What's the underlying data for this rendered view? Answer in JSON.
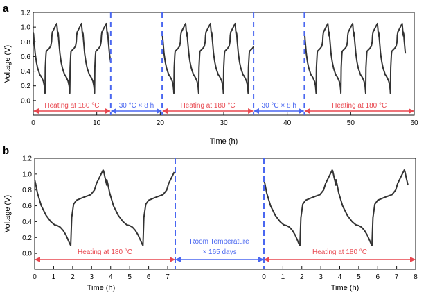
{
  "colors": {
    "curve": "#333333",
    "red": "#e8474f",
    "blue": "#4a67f0",
    "axis": "#111111"
  },
  "chart_data": [
    {
      "panel_label": "a",
      "type": "line",
      "xlabel": "Time (h)",
      "ylabel": "Voltage (V)",
      "xlim": [
        0,
        60
      ],
      "ylim": [
        -0.2,
        1.2
      ],
      "xticks": [
        0,
        10,
        20,
        30,
        40,
        50,
        60
      ],
      "yticks": [
        -0.2,
        0.0,
        0.2,
        0.4,
        0.6,
        0.8,
        1.0,
        1.2
      ],
      "ytick_labels": [
        "",
        "0.0",
        "0.2",
        "0.4",
        "0.6",
        "0.8",
        "1.0",
        "1.2"
      ],
      "dividers": [
        12.2,
        20.3,
        34.7,
        42.7
      ],
      "segments": [
        {
          "label": "Heating at 180 °C",
          "start": 0,
          "end": 12.2,
          "color": "red"
        },
        {
          "label": "30 °C × 8 h",
          "start": 12.2,
          "end": 20.3,
          "color": "blue"
        },
        {
          "label": "Heating at 180 °C",
          "start": 20.3,
          "end": 34.7,
          "color": "red"
        },
        {
          "label": "30 °C × 8 h",
          "start": 34.7,
          "end": 42.7,
          "color": "blue"
        },
        {
          "label": "Heating at 180 °C",
          "start": 42.7,
          "end": 60,
          "color": "red"
        }
      ],
      "cycles": [
        {
          "start": 0.0,
          "period": 3.9,
          "count": 3,
          "end": 12.2
        },
        {
          "start": 20.3,
          "period": 3.9,
          "count": 4,
          "end": 34.7
        },
        {
          "start": 42.7,
          "period": 3.9,
          "count": 4,
          "end": 58.6
        }
      ],
      "voltage_profile": {
        "t": [
          0,
          0.05,
          0.12,
          0.3,
          0.5,
          0.7,
          0.85,
          0.93,
          1.0,
          1.05,
          1.15,
          1.35,
          1.6,
          1.75,
          1.82,
          1.85,
          1.9,
          2.0,
          2.05,
          2.5,
          2.75,
          2.88,
          2.93,
          3.0,
          3.7,
          3.72,
          3.78,
          3.85,
          3.9
        ],
        "v": [
          0.93,
          0.9,
          0.82,
          0.64,
          0.52,
          0.44,
          0.4,
          0.38,
          0.36,
          0.35,
          0.34,
          0.31,
          0.26,
          0.2,
          0.14,
          0.1,
          0.45,
          0.62,
          0.67,
          0.71,
          0.74,
          0.8,
          0.88,
          0.93,
          1.05,
          1.03,
          0.97,
          0.9,
          0.88
        ]
      }
    },
    {
      "panel_label": "b",
      "type": "line",
      "xlabel": "Time (h)",
      "ylabel": "Voltage (V)",
      "ylim": [
        -0.2,
        1.2
      ],
      "yticks": [
        -0.2,
        0.0,
        0.2,
        0.4,
        0.6,
        0.8,
        1.0,
        1.2
      ],
      "ytick_labels": [
        "",
        "0.0",
        "0.2",
        "0.4",
        "0.6",
        "0.8",
        "1.0",
        "1.2"
      ],
      "left_xlim": [
        0,
        7.4
      ],
      "left_xticks": [
        0,
        1,
        2,
        3,
        4,
        5,
        6,
        7
      ],
      "right_xlim": [
        0,
        8
      ],
      "right_xticks": [
        0,
        1,
        2,
        3,
        4,
        5,
        6,
        7,
        8
      ],
      "segments": [
        {
          "label": "Heating at 180 °C",
          "color": "red"
        },
        {
          "label": "Room Temperature",
          "label2": "× 165 days",
          "color": "blue"
        },
        {
          "label": "Heating at 180 °C",
          "color": "red"
        }
      ],
      "voltage_profile": {
        "t": [
          0,
          0.05,
          0.15,
          0.35,
          0.6,
          0.85,
          1.05,
          1.2,
          1.35,
          1.5,
          1.65,
          1.78,
          1.85,
          1.9,
          1.95,
          2.05,
          2.2,
          2.6,
          2.95,
          3.15,
          3.25,
          3.6,
          3.63,
          3.7,
          3.8
        ],
        "v": [
          0.93,
          0.88,
          0.76,
          0.6,
          0.48,
          0.4,
          0.36,
          0.35,
          0.33,
          0.29,
          0.23,
          0.16,
          0.12,
          0.1,
          0.45,
          0.62,
          0.67,
          0.71,
          0.74,
          0.8,
          0.88,
          1.05,
          1.04,
          0.96,
          0.86
        ]
      },
      "left_curve_end": 7.35,
      "right_curve_end": 7.6
    }
  ]
}
